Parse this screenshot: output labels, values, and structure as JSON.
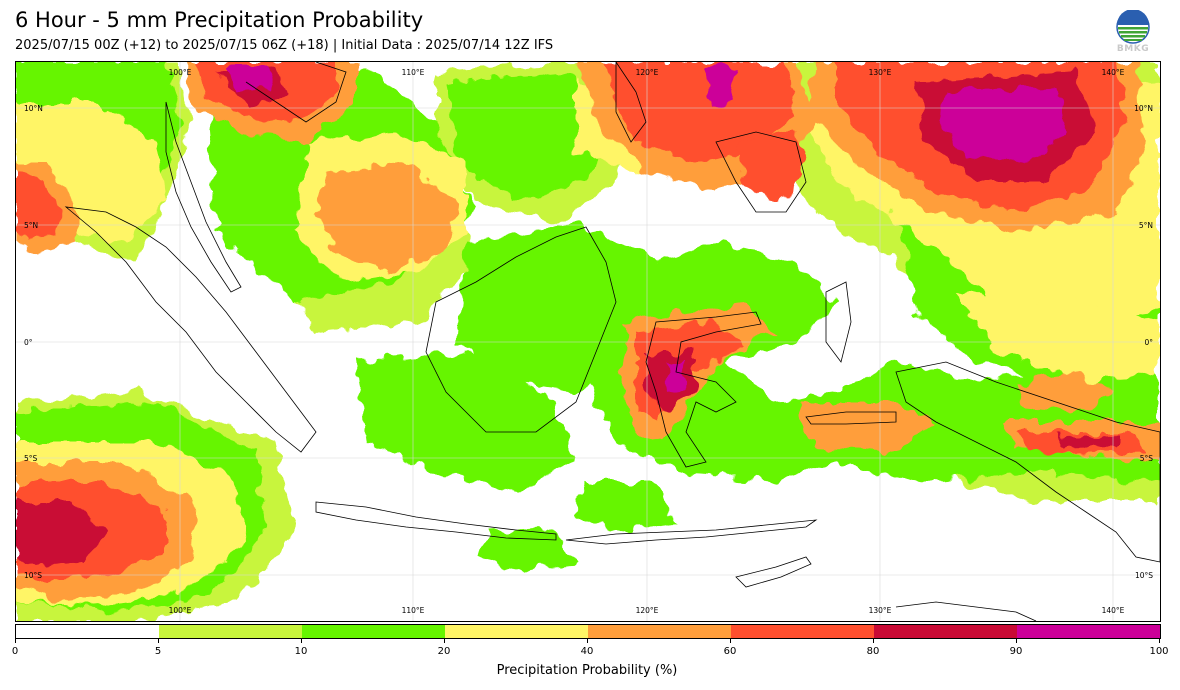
{
  "header": {
    "title": "6 Hour - 5 mm Precipitation Probability",
    "subtitle": "2025/07/15 00Z (+12) to 2025/07/15 06Z (+18) | Initial Data : 2025/07/14 12Z IFS"
  },
  "logo": {
    "text": "BMKG",
    "icon": "bmkg-logo-icon"
  },
  "map": {
    "lon_labels": [
      "100°E",
      "110°E",
      "120°E",
      "130°E",
      "140°E"
    ],
    "lat_labels": [
      "10°N",
      "5°N",
      "0°",
      "5°S",
      "10°S"
    ],
    "extent": {
      "lon": [
        93.5,
        142.5
      ],
      "lat": [
        -12,
        12
      ]
    },
    "grid": true
  },
  "legend": {
    "title": "Precipitation Probability (%)",
    "ticks": [
      "0",
      "5",
      "10",
      "20",
      "40",
      "60",
      "80",
      "90",
      "100"
    ],
    "colors": [
      "#ffffff",
      "#c8f53c",
      "#66f500",
      "#fff566",
      "#ff9e3b",
      "#ff4f2e",
      "#c90a35",
      "#cc0099"
    ]
  }
}
